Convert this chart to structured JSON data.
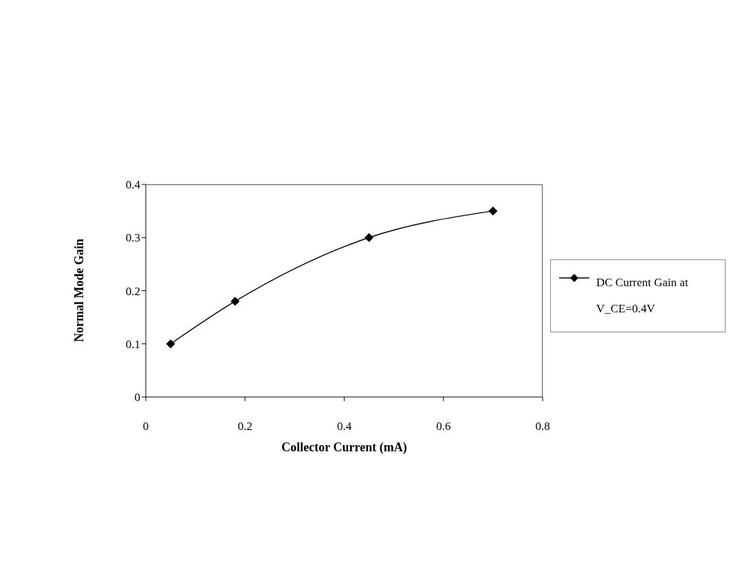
{
  "chart_data": {
    "type": "line",
    "xlabel": "Collector Current (mA)",
    "ylabel": "Normal Mode Gain",
    "x": [
      0.05,
      0.18,
      0.45,
      0.7
    ],
    "series": [
      {
        "name": "DC Current Gain at V_CE=0.4V",
        "color": "#000000",
        "values": [
          0.1,
          0.18,
          0.3,
          0.35
        ]
      }
    ],
    "xlim": [
      0,
      0.8
    ],
    "xticks": [
      0,
      0.2,
      0.4,
      0.6,
      0.8
    ],
    "ylim": [
      0,
      0.4
    ],
    "yticks": [
      0,
      0.1,
      0.2,
      0.3,
      0.4
    ],
    "legend": "right",
    "marker": "diamond",
    "line_style": "solid",
    "grid": false
  }
}
